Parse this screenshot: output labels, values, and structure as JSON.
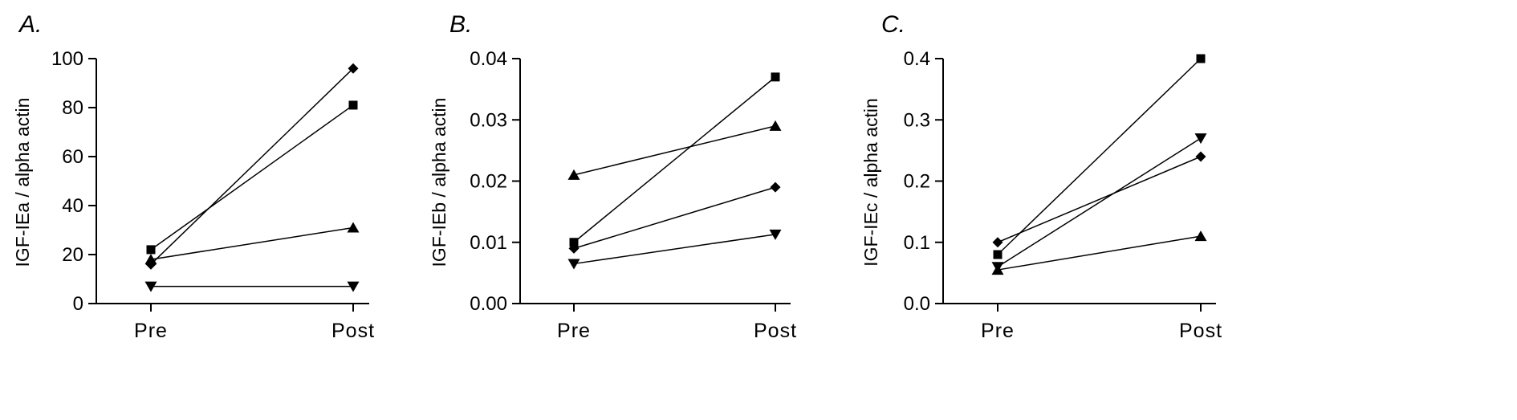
{
  "chart_data": [
    {
      "type": "line",
      "panel_label": "A.",
      "ylabel": "IGF-IEa / alpha actin",
      "categories": [
        "Pre",
        "Post"
      ],
      "ylim": [
        0,
        100
      ],
      "yticks": [
        0,
        20,
        40,
        60,
        80,
        100
      ],
      "ytick_labels": [
        "0",
        "20",
        "40",
        "60",
        "80",
        "100"
      ],
      "series": [
        {
          "marker": "diamond",
          "values": [
            16,
            96
          ]
        },
        {
          "marker": "square",
          "values": [
            22,
            81
          ]
        },
        {
          "marker": "triangle-up",
          "values": [
            18,
            31
          ]
        },
        {
          "marker": "triangle-down",
          "values": [
            7,
            7
          ]
        }
      ]
    },
    {
      "type": "line",
      "panel_label": "B.",
      "ylabel": "IGF-IEb  / alpha actin",
      "categories": [
        "Pre",
        "Post"
      ],
      "ylim": [
        0,
        0.04
      ],
      "yticks": [
        0,
        0.01,
        0.02,
        0.03,
        0.04
      ],
      "ytick_labels": [
        "0.00",
        "0.01",
        "0.02",
        "0.03",
        "0.04"
      ],
      "series": [
        {
          "marker": "triangle-up",
          "values": [
            0.021,
            0.029
          ]
        },
        {
          "marker": "square",
          "values": [
            0.01,
            0.037
          ]
        },
        {
          "marker": "diamond",
          "values": [
            0.009,
            0.019
          ]
        },
        {
          "marker": "triangle-down",
          "values": [
            0.0065,
            0.0113
          ]
        }
      ]
    },
    {
      "type": "line",
      "panel_label": "C.",
      "ylabel": "IGF-IEc / alpha actin",
      "categories": [
        "Pre",
        "Post"
      ],
      "ylim": [
        0,
        0.4
      ],
      "yticks": [
        0,
        0.1,
        0.2,
        0.3,
        0.4
      ],
      "ytick_labels": [
        "0.0",
        "0.1",
        "0.2",
        "0.3",
        "0.4"
      ],
      "series": [
        {
          "marker": "square",
          "values": [
            0.08,
            0.4
          ]
        },
        {
          "marker": "triangle-down",
          "values": [
            0.06,
            0.27
          ]
        },
        {
          "marker": "diamond",
          "values": [
            0.1,
            0.24
          ]
        },
        {
          "marker": "triangle-up",
          "values": [
            0.055,
            0.11
          ]
        }
      ]
    }
  ]
}
